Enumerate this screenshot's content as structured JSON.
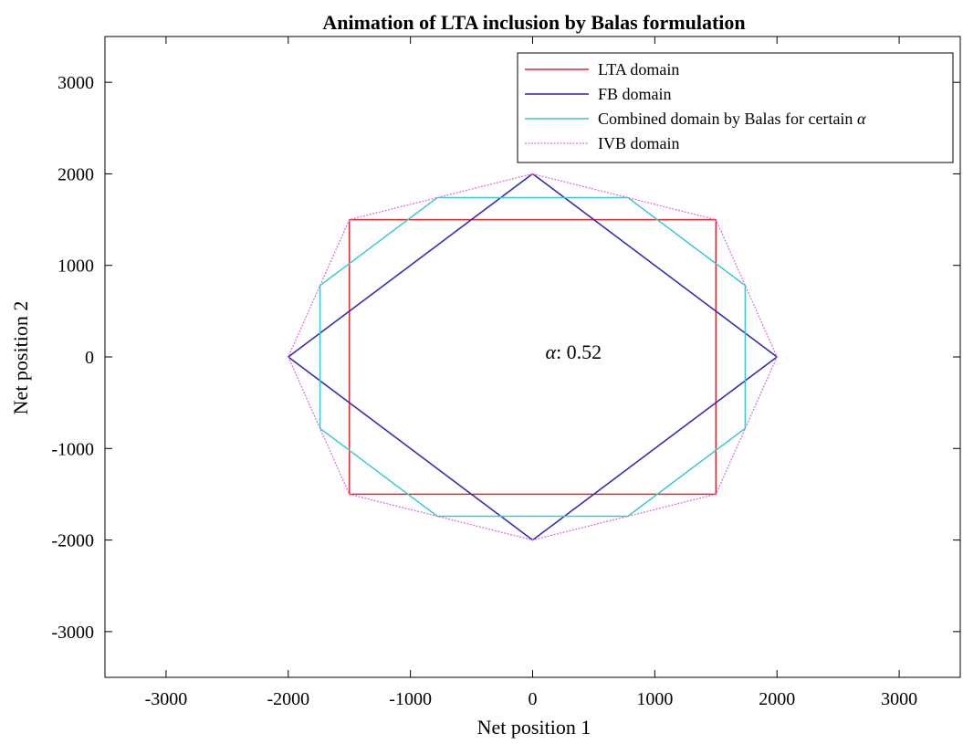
{
  "chart_data": {
    "type": "line",
    "title": "Animation of LTA inclusion by Balas formulation",
    "xlabel": "Net position 1",
    "ylabel": "Net position 2",
    "xlim": [
      -3500,
      3500
    ],
    "ylim": [
      -3500,
      3500
    ],
    "xticks": [
      -3000,
      -2000,
      -1000,
      0,
      1000,
      2000,
      3000
    ],
    "yticks": [
      -3000,
      -2000,
      -1000,
      0,
      1000,
      2000,
      3000
    ],
    "xtick_labels": [
      "-3000",
      "-2000",
      "-1000",
      "0",
      "1000",
      "2000",
      "3000"
    ],
    "ytick_labels": [
      "-3000",
      "-2000",
      "-1000",
      "0",
      "1000",
      "2000",
      "3000"
    ],
    "grid": false,
    "legend_position": "top-right",
    "annotation": {
      "symbol": "α",
      "text": ": 0.52",
      "x": 0,
      "y": 0
    },
    "series": [
      {
        "name": "LTA domain",
        "color": "#e8262b",
        "points": [
          [
            -1500,
            1500
          ],
          [
            1500,
            1500
          ],
          [
            1500,
            -1500
          ],
          [
            -1500,
            -1500
          ],
          [
            -1500,
            1500
          ]
        ]
      },
      {
        "name": "FB domain",
        "color": "#2626b0",
        "points": [
          [
            0,
            2000
          ],
          [
            2000,
            0
          ],
          [
            0,
            -2000
          ],
          [
            -2000,
            0
          ],
          [
            0,
            2000
          ]
        ]
      },
      {
        "name": "Combined domain by Balas for certain α",
        "name_symbol": "α",
        "color": "#3cc8d2",
        "points": [
          [
            -780,
            1740
          ],
          [
            780,
            1740
          ],
          [
            1740,
            780
          ],
          [
            1740,
            -780
          ],
          [
            780,
            -1740
          ],
          [
            -780,
            -1740
          ],
          [
            -1740,
            -780
          ],
          [
            -1740,
            780
          ],
          [
            -780,
            1740
          ]
        ]
      },
      {
        "name": "IVB domain",
        "color": "#e070e0",
        "dashed": true,
        "points": [
          [
            0,
            2000
          ],
          [
            1500,
            1500
          ],
          [
            2000,
            0
          ],
          [
            1500,
            -1500
          ],
          [
            0,
            -2000
          ],
          [
            -1500,
            -1500
          ],
          [
            -2000,
            0
          ],
          [
            -1500,
            1500
          ],
          [
            0,
            2000
          ]
        ]
      }
    ]
  }
}
